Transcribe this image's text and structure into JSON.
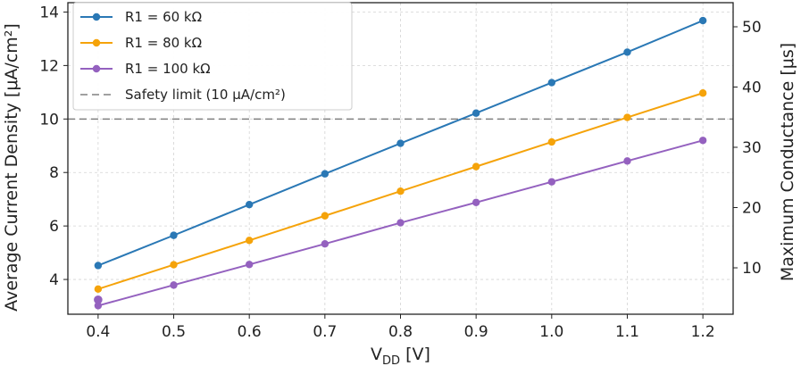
{
  "chart_data": {
    "type": "line",
    "x": [
      0.4,
      0.5,
      0.6,
      0.7,
      0.8,
      0.9,
      1.0,
      1.1,
      1.2
    ],
    "xlabel": "V_DD [V]",
    "xlabel_main": "V",
    "xlabel_sub": "DD",
    "xlabel_unit": " [V]",
    "ylabel": "Average Current Density [μA/cm²]",
    "y2label": "Maximum Conductance [μs]",
    "xlim": [
      0.36,
      1.24
    ],
    "ylim": [
      2.7,
      14.35
    ],
    "y2lim": [
      2.3,
      54.0
    ],
    "xticks": [
      "0.4",
      "0.5",
      "0.6",
      "0.7",
      "0.8",
      "0.9",
      "1.0",
      "1.1",
      "1.2"
    ],
    "yticks": [
      "4",
      "6",
      "8",
      "10",
      "12",
      "14"
    ],
    "y2ticks": [
      "10",
      "20",
      "30",
      "40",
      "50"
    ],
    "grid": true,
    "legend_position": "top-left",
    "series": [
      {
        "name": "R1 = 60 kΩ",
        "color": "#2a78b5",
        "values": [
          4.52,
          5.65,
          6.8,
          7.95,
          9.09,
          10.22,
          11.36,
          12.5,
          13.68
        ]
      },
      {
        "name": "R1 = 80 kΩ",
        "color": "#f5a30a",
        "values": [
          3.64,
          4.55,
          5.46,
          6.38,
          7.3,
          8.22,
          9.14,
          10.06,
          10.97
        ]
      },
      {
        "name": "R1 = 100 kΩ",
        "color": "#9461bf",
        "values": [
          3.02,
          3.79,
          4.56,
          5.33,
          6.12,
          6.88,
          7.65,
          8.43,
          9.2
        ]
      }
    ],
    "extra_points": [
      {
        "x": 0.4,
        "y": 3.24,
        "color": "#9461bf"
      }
    ],
    "reference_lines": [
      {
        "name": "Safety limit (10 μA/cm²)",
        "y": 10,
        "color": "#808080",
        "style": "dashed"
      }
    ]
  }
}
